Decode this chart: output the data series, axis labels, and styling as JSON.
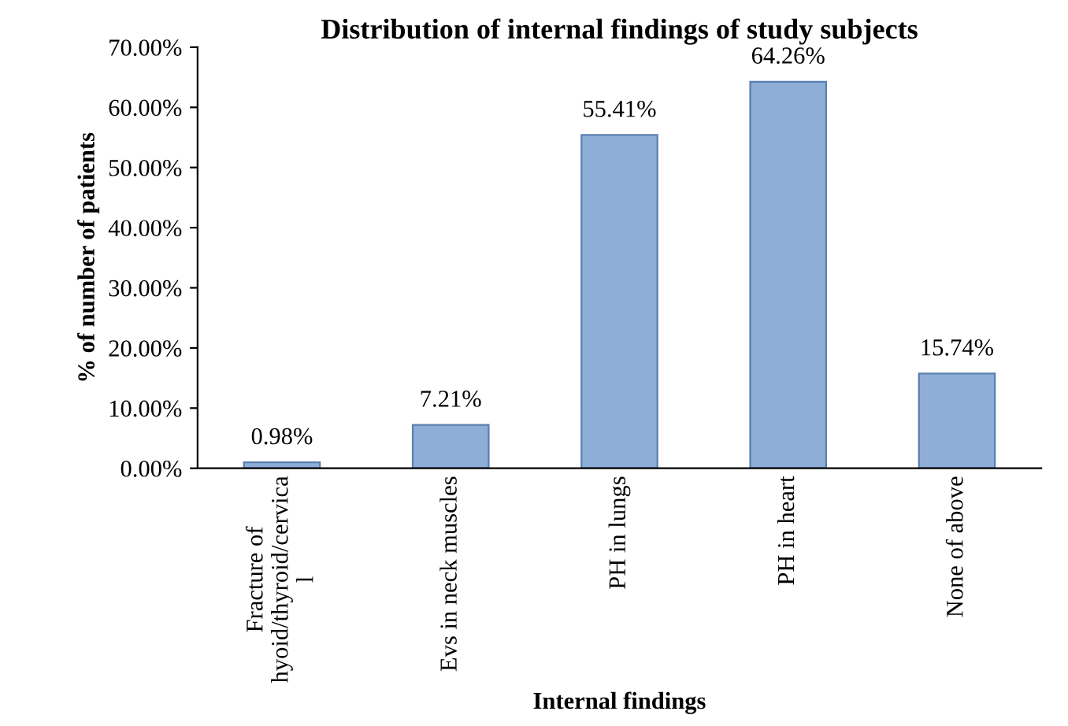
{
  "chart_data": {
    "type": "bar",
    "title": "Distribution of internal findings of study subjects",
    "xlabel": "Internal findings",
    "ylabel": "% of number of patients",
    "categories": [
      "Fracture of\nhyoid/thyroid/cervica\nl",
      "Evs in neck muscles",
      "PH in lungs",
      "PH in heart",
      "None of above"
    ],
    "values": [
      0.98,
      7.21,
      55.41,
      64.26,
      15.74
    ],
    "value_labels": [
      "0.98%",
      "7.21%",
      "55.41%",
      "64.26%",
      "15.74%"
    ],
    "color": "#8eaed8",
    "ylim": [
      0,
      70
    ],
    "yticks": [
      {
        "value": 0,
        "label": "0.00%"
      },
      {
        "value": 10,
        "label": "10.00%"
      },
      {
        "value": 20,
        "label": "20.00%"
      },
      {
        "value": 30,
        "label": "30.00%"
      },
      {
        "value": 40,
        "label": "40.00%"
      },
      {
        "value": 50,
        "label": "50.00%"
      },
      {
        "value": 60,
        "label": "60.00%"
      },
      {
        "value": 70,
        "label": "70.00%"
      }
    ],
    "grid": false,
    "legend": false
  }
}
